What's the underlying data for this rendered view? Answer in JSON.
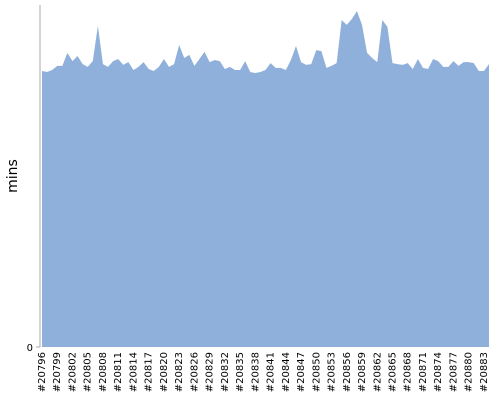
{
  "chart_data": {
    "type": "area",
    "y_label": "mins",
    "categories": [
      "#20796",
      null,
      null,
      "#20799",
      null,
      null,
      "#20802",
      null,
      null,
      "#20805",
      null,
      null,
      "#20808",
      null,
      null,
      "#20811",
      null,
      null,
      "#20814",
      null,
      null,
      "#20817",
      null,
      null,
      "#20820",
      null,
      null,
      "#20823",
      null,
      null,
      "#20826",
      null,
      null,
      "#20829",
      null,
      null,
      "#20832",
      null,
      null,
      "#20835",
      null,
      null,
      "#20838",
      null,
      null,
      "#20841",
      null,
      null,
      "#20844",
      null,
      null,
      "#20847",
      null,
      null,
      "#20850",
      null,
      null,
      "#20853",
      null,
      null,
      "#20856",
      null,
      null,
      "#20859",
      null,
      null,
      "#20862",
      null,
      null,
      "#20865",
      null,
      null,
      "#20868",
      null,
      null,
      "#20871",
      null,
      null,
      "#20874",
      null,
      null,
      "#20877",
      null,
      null,
      "#20880",
      null,
      null,
      "#20883",
      null
    ],
    "values": [
      80.7,
      80.4,
      81.0,
      82.2,
      82.2,
      86.0,
      83.6,
      85.1,
      82.7,
      81.9,
      83.6,
      93.9,
      82.7,
      81.9,
      83.6,
      84.2,
      82.5,
      83.3,
      81.0,
      81.9,
      83.3,
      81.3,
      80.7,
      81.9,
      84.2,
      81.9,
      82.7,
      88.3,
      84.5,
      85.4,
      82.2,
      84.2,
      86.3,
      83.3,
      83.9,
      83.6,
      81.3,
      81.9,
      81.0,
      81.0,
      83.6,
      80.4,
      80.1,
      80.4,
      81.0,
      83.0,
      81.6,
      81.6,
      81.0,
      83.9,
      88.0,
      83.3,
      82.5,
      82.7,
      86.8,
      86.5,
      81.6,
      82.2,
      83.0,
      95.6,
      94.2,
      95.9,
      98.2,
      94.2,
      86.0,
      84.5,
      83.3,
      95.6,
      93.6,
      83.0,
      82.7,
      82.5,
      83.0,
      81.3,
      84.2,
      81.6,
      81.3,
      84.2,
      83.6,
      81.9,
      81.9,
      83.6,
      82.2,
      83.3,
      83.3,
      83.0,
      80.7,
      80.7,
      82.7
    ],
    "color": "#8fb0db",
    "ylim": [
      0,
      100
    ],
    "yticks": [
      0
    ]
  }
}
